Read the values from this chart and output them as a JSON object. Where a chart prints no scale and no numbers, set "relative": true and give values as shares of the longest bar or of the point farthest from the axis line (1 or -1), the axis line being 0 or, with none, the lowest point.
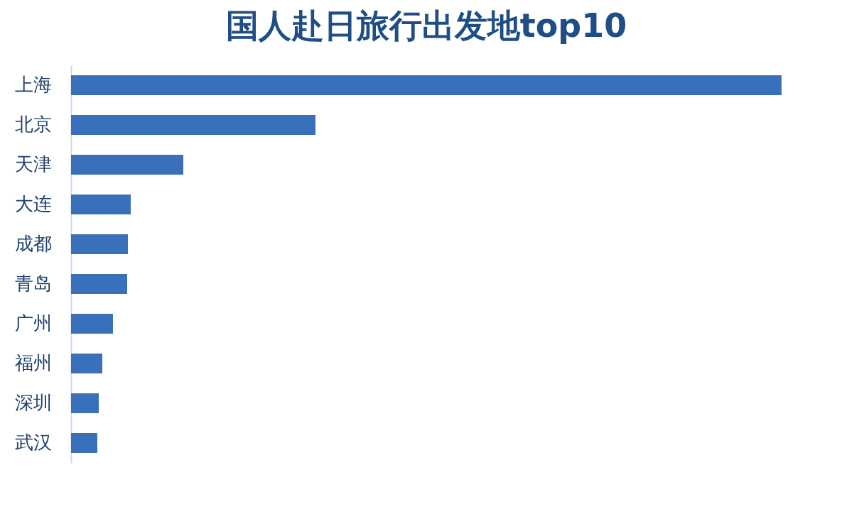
{
  "chart_data": {
    "type": "bar",
    "orientation": "horizontal",
    "relative": true,
    "title": "国人赴日旅行出发地top10",
    "categories": [
      "上海",
      "北京",
      "天津",
      "大连",
      "成都",
      "青岛",
      "广州",
      "福州",
      "深圳",
      "武汉"
    ],
    "values": [
      1,
      0.344,
      0.158,
      0.084,
      0.08,
      0.079,
      0.059,
      0.044,
      0.039,
      0.037
    ],
    "color": "#3a6fba"
  }
}
